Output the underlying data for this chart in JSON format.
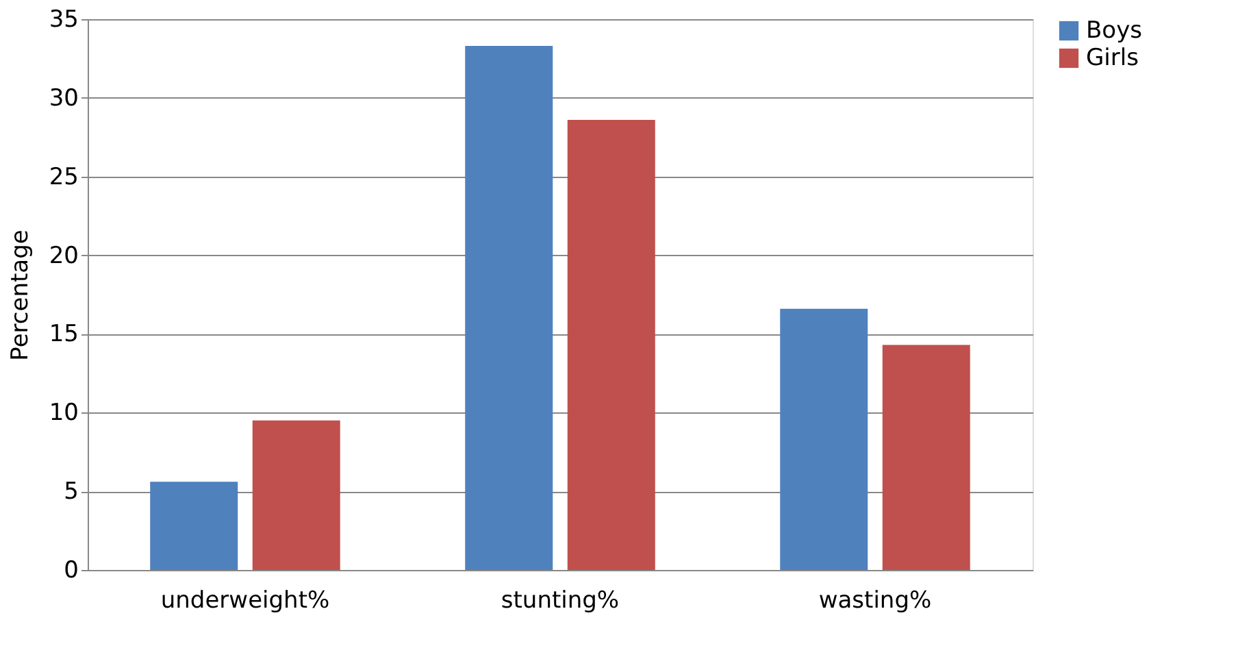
{
  "chart_data": {
    "type": "bar",
    "ylabel": "Percentage",
    "categories": [
      "underweight%",
      "stunting%",
      "wasting%"
    ],
    "series": [
      {
        "name": "Boys",
        "color": "#4f81bd",
        "values": [
          5.6,
          33.3,
          16.6
        ]
      },
      {
        "name": "Girls",
        "color": "#c0504d",
        "values": [
          9.5,
          28.6,
          14.3
        ]
      }
    ],
    "ylim": [
      0,
      35
    ],
    "yticks": [
      0,
      5,
      10,
      15,
      20,
      25,
      30,
      35
    ],
    "grid": "y",
    "legend": "right"
  }
}
